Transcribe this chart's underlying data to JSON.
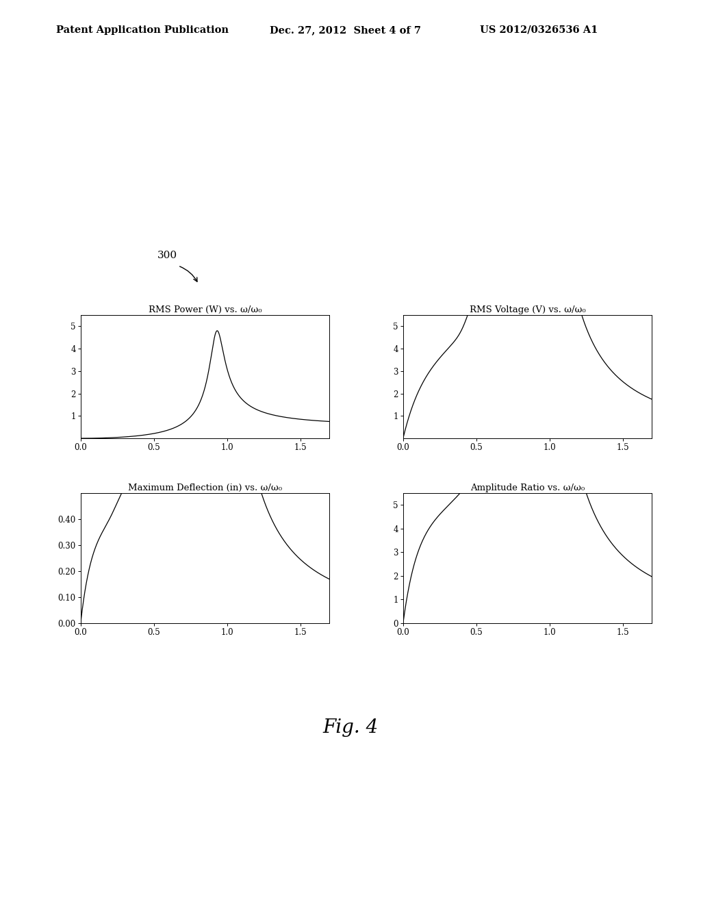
{
  "header_left": "Patent Application Publication",
  "header_mid": "Dec. 27, 2012  Sheet 4 of 7",
  "header_right": "US 2012/0326536 A1",
  "fig_label": "Fig. 4",
  "ref_number": "300",
  "plot_titles": [
    "RMS Power (W) vs. ω/ω₀",
    "RMS Voltage (V) vs. ω/ω₀",
    "Maximum Deflection (in) vs. ω/ω₀",
    "Amplitude Ratio vs. ω/ω₀"
  ],
  "xlims": [
    0.0,
    1.7
  ],
  "xticks": [
    0.0,
    0.5,
    1.0,
    1.5
  ],
  "plot1_ylim": [
    0,
    5.5
  ],
  "plot1_yticks": [
    1,
    2,
    3,
    4,
    5
  ],
  "plot2_ylim": [
    0,
    5.5
  ],
  "plot2_yticks": [
    1,
    2,
    3,
    4,
    5
  ],
  "plot3_ylim": [
    0.0,
    0.5
  ],
  "plot3_yticks": [
    0.0,
    0.1,
    0.2,
    0.3,
    0.4
  ],
  "plot4_ylim": [
    0,
    5.5
  ],
  "plot4_yticks": [
    0,
    1,
    2,
    3,
    4,
    5
  ],
  "line_color": "#000000",
  "background_color": "#ffffff"
}
